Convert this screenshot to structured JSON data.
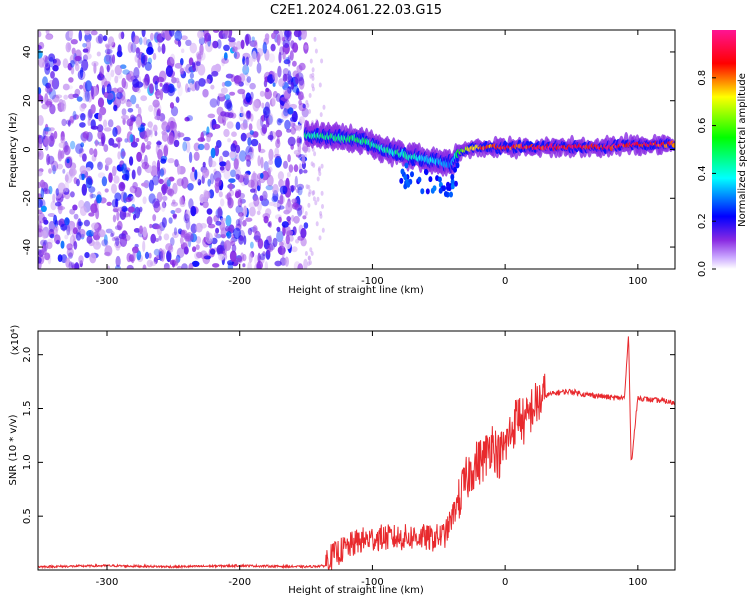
{
  "title": "C2E1.2024.061.22.03.G15",
  "chart_data": [
    {
      "type": "heatmap",
      "title": "",
      "xlabel": "Height of straight line (km)",
      "ylabel": "Frequency (Hz)",
      "xlim": [
        -352,
        128
      ],
      "ylim": [
        -49,
        49
      ],
      "xticks": [
        -300,
        -200,
        -100,
        0,
        100
      ],
      "xtick_labels": [
        "-300",
        "-200",
        "-100",
        "0",
        "100"
      ],
      "yticks": [
        -40,
        -20,
        0,
        20,
        40
      ],
      "ytick_labels": [
        "-40",
        "-20",
        "0",
        "20",
        "40"
      ],
      "colorbar": {
        "label": "Normalized spectral amplitude",
        "range": [
          0,
          1
        ],
        "ticks": [
          0.0,
          0.2,
          0.4,
          0.6,
          0.8
        ],
        "tick_labels": [
          "0.0",
          "0.2",
          "0.4",
          "0.6",
          "0.8"
        ],
        "colors": [
          "#ffffff",
          "#8a2be2",
          "#0000ff",
          "#00ffff",
          "#00ff00",
          "#ffff00",
          "#ff0000",
          "#ff1493"
        ]
      },
      "noise_region": {
        "x_range": [
          -352,
          -150
        ],
        "y_range": [
          -49,
          49
        ],
        "amplitude": [
          0.05,
          0.3
        ]
      },
      "ridge": [
        {
          "x": -150,
          "y": 6,
          "amp": 0.45
        },
        {
          "x": -130,
          "y": 5,
          "amp": 0.5
        },
        {
          "x": -110,
          "y": 4,
          "amp": 0.5
        },
        {
          "x": -90,
          "y": 0,
          "amp": 0.45
        },
        {
          "x": -70,
          "y": -3,
          "amp": 0.45
        },
        {
          "x": -50,
          "y": -5,
          "amp": 0.35
        },
        {
          "x": -40,
          "y": -6,
          "amp": 0.3
        },
        {
          "x": -35,
          "y": -1,
          "amp": 0.6
        },
        {
          "x": -20,
          "y": 1,
          "amp": 0.85
        },
        {
          "x": 0,
          "y": 1,
          "amp": 0.9
        },
        {
          "x": 40,
          "y": 1,
          "amp": 0.95
        },
        {
          "x": 80,
          "y": 1,
          "amp": 0.95
        },
        {
          "x": 90,
          "y": 2,
          "amp": 0.95
        },
        {
          "x": 128,
          "y": 2,
          "amp": 0.9
        }
      ]
    },
    {
      "type": "line",
      "title": "",
      "xlabel": "Height of straight line (km)",
      "ylabel": "SNR (10 * v/v)",
      "scale_label": "(x10⁴)",
      "xlim": [
        -352,
        128
      ],
      "ylim": [
        0.0,
        2.22
      ],
      "xticks": [
        -300,
        -200,
        -100,
        0,
        100
      ],
      "xtick_labels": [
        "-300",
        "-200",
        "-100",
        "0",
        "100"
      ],
      "yticks": [
        0.5,
        1.0,
        1.5,
        2.0
      ],
      "ytick_labels": [
        "0.5",
        "1.0",
        "1.5",
        "2.0"
      ],
      "series_color": "#e8292d",
      "x": [
        -352,
        -300,
        -250,
        -200,
        -150,
        -135,
        -125,
        -110,
        -95,
        -80,
        -65,
        -55,
        -45,
        -38,
        -32,
        -25,
        -20,
        -15,
        -10,
        -5,
        0,
        5,
        10,
        15,
        20,
        25,
        30,
        40,
        50,
        60,
        70,
        80,
        90,
        93,
        95,
        100,
        110,
        120,
        128
      ],
      "values": [
        0.03,
        0.04,
        0.03,
        0.04,
        0.03,
        0.04,
        0.12,
        0.22,
        0.25,
        0.25,
        0.26,
        0.24,
        0.28,
        0.5,
        0.75,
        0.95,
        1.0,
        1.05,
        1.2,
        1.05,
        1.15,
        1.3,
        1.45,
        1.35,
        1.5,
        1.55,
        1.62,
        1.65,
        1.66,
        1.63,
        1.62,
        1.6,
        1.6,
        2.2,
        0.98,
        1.6,
        1.58,
        1.57,
        1.55
      ]
    }
  ]
}
